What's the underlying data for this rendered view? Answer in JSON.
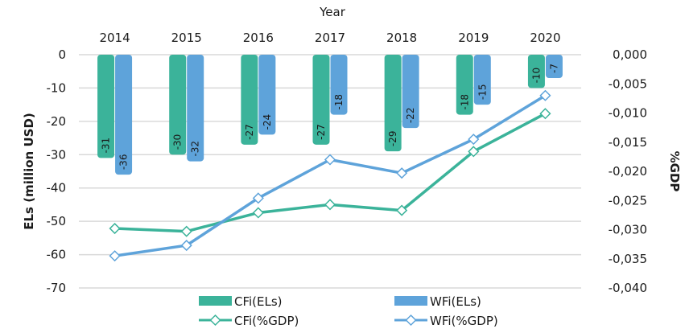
{
  "chart_data": {
    "type": "bar",
    "title": "",
    "xlabel": "Year",
    "ylabel": "ELs (million USD)",
    "y2label": "%GDP",
    "categories": [
      "2014",
      "2015",
      "2016",
      "2017",
      "2018",
      "2019",
      "2020"
    ],
    "ylim": [
      -70,
      0
    ],
    "yticks": [
      0,
      -10,
      -20,
      -30,
      -40,
      -50,
      -60,
      -70
    ],
    "ytick_labels": [
      "0",
      "-10",
      "-20",
      "-30",
      "-40",
      "-50",
      "-60",
      "-70"
    ],
    "y2lim": [
      -0.04,
      0
    ],
    "y2ticks": [
      0,
      -0.005,
      -0.01,
      -0.015,
      -0.02,
      -0.025,
      -0.03,
      -0.035,
      -0.04
    ],
    "y2tick_labels": [
      "0,000",
      "-0,005",
      "-0,010",
      "-0,015",
      "-0,020",
      "-0,025",
      "-0,030",
      "-0,035",
      "-0,040"
    ],
    "grid": true,
    "x_axis_position": "top",
    "legend_position": "bottom",
    "series": [
      {
        "name": "CFi(ELs)",
        "type": "bar",
        "axis": "left",
        "color": "#3bb39a",
        "values": [
          -31,
          -30,
          -27,
          -27,
          -29,
          -18,
          -10
        ],
        "labels": [
          "-31",
          "-30",
          "-27",
          "-27",
          "-29",
          "-18",
          "-10"
        ]
      },
      {
        "name": "WFi(ELs)",
        "type": "bar",
        "axis": "left",
        "color": "#5ea3da",
        "values": [
          -36,
          -32,
          -24,
          -18,
          -22,
          -15,
          -7
        ],
        "labels": [
          "-36",
          "-32",
          "-24",
          "-18",
          "-22",
          "-15",
          "-7"
        ]
      },
      {
        "name": "CFi(%GDP)",
        "type": "line",
        "axis": "right",
        "color": "#3bb39a",
        "marker": "diamond",
        "values": [
          -0.0298,
          -0.0303,
          -0.0271,
          -0.0257,
          -0.0267,
          -0.0166,
          -0.0101
        ]
      },
      {
        "name": "WFi(%GDP)",
        "type": "line",
        "axis": "right",
        "color": "#5ea3da",
        "marker": "diamond",
        "values": [
          -0.0345,
          -0.0327,
          -0.0246,
          -0.018,
          -0.0203,
          -0.0145,
          -0.007
        ]
      }
    ]
  }
}
